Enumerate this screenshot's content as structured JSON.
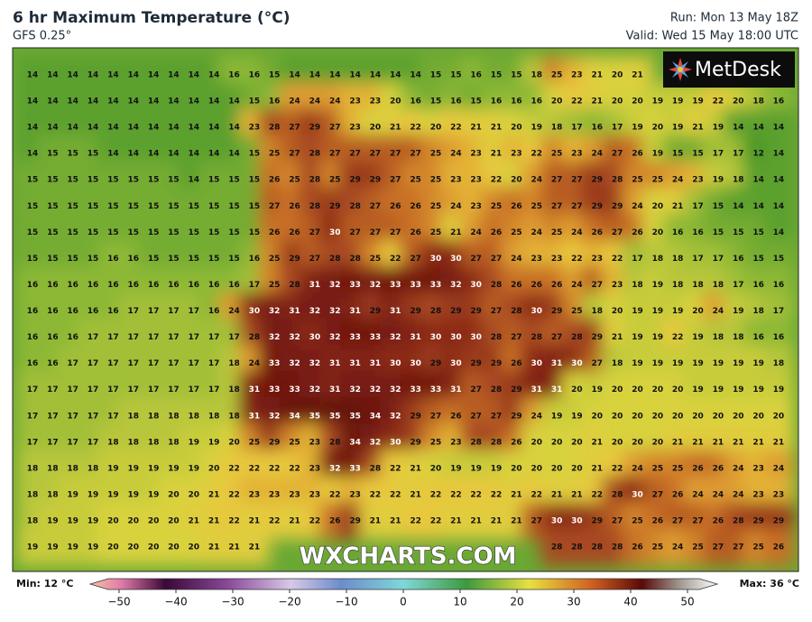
{
  "header": {
    "title": "6 hr Maximum Temperature (°C)",
    "subtitle": "GFS 0.25°",
    "run": "Run: Mon 13 May 18Z",
    "valid": "Valid: Wed 15 May 18:00 UTC"
  },
  "logo": "MetDesk",
  "watermark": "WXCHARTS.COM",
  "grid": {
    "rows": [
      [
        14,
        14,
        14,
        14,
        14,
        14,
        14,
        14,
        14,
        14,
        16,
        16,
        15,
        14,
        14,
        14,
        14,
        14,
        14,
        14,
        15,
        15,
        16,
        15,
        15,
        18,
        25,
        23,
        21,
        20,
        21,
        null,
        null,
        null,
        null,
        null,
        null,
        null
      ],
      [
        14,
        14,
        14,
        14,
        14,
        14,
        14,
        14,
        14,
        14,
        14,
        15,
        16,
        24,
        24,
        24,
        23,
        23,
        20,
        16,
        15,
        16,
        15,
        16,
        16,
        16,
        20,
        22,
        21,
        20,
        20,
        19,
        19,
        19,
        22,
        20,
        18,
        16
      ],
      [
        14,
        14,
        14,
        14,
        14,
        14,
        14,
        14,
        14,
        14,
        14,
        23,
        28,
        27,
        29,
        27,
        23,
        20,
        21,
        22,
        20,
        22,
        21,
        21,
        20,
        19,
        18,
        17,
        16,
        17,
        19,
        20,
        19,
        21,
        19,
        14,
        14,
        14
      ],
      [
        14,
        15,
        15,
        15,
        14,
        14,
        14,
        14,
        14,
        14,
        14,
        15,
        25,
        27,
        28,
        27,
        27,
        27,
        27,
        27,
        25,
        24,
        23,
        21,
        23,
        22,
        25,
        23,
        24,
        27,
        26,
        19,
        15,
        15,
        17,
        17,
        12,
        14
      ],
      [
        15,
        15,
        15,
        15,
        15,
        15,
        15,
        15,
        14,
        15,
        15,
        15,
        26,
        25,
        28,
        25,
        29,
        29,
        27,
        25,
        25,
        23,
        23,
        22,
        20,
        24,
        27,
        27,
        29,
        28,
        25,
        25,
        24,
        23,
        19,
        18,
        14,
        14
      ],
      [
        15,
        15,
        15,
        15,
        15,
        15,
        15,
        15,
        15,
        15,
        15,
        15,
        27,
        26,
        28,
        29,
        28,
        27,
        26,
        26,
        25,
        24,
        23,
        25,
        26,
        25,
        27,
        27,
        29,
        29,
        24,
        20,
        21,
        17,
        15,
        14,
        14,
        14
      ],
      [
        15,
        15,
        15,
        15,
        15,
        15,
        15,
        15,
        15,
        15,
        15,
        15,
        26,
        26,
        27,
        30,
        27,
        27,
        27,
        26,
        25,
        21,
        24,
        26,
        25,
        24,
        25,
        24,
        26,
        27,
        26,
        20,
        16,
        16,
        15,
        15,
        15,
        14
      ],
      [
        15,
        15,
        15,
        15,
        16,
        16,
        15,
        15,
        15,
        15,
        15,
        16,
        25,
        29,
        27,
        28,
        28,
        25,
        22,
        27,
        30,
        30,
        27,
        27,
        24,
        23,
        23,
        22,
        23,
        22,
        17,
        18,
        18,
        17,
        17,
        16,
        15,
        15
      ],
      [
        16,
        16,
        16,
        16,
        16,
        16,
        16,
        16,
        16,
        16,
        16,
        17,
        25,
        28,
        31,
        32,
        33,
        32,
        33,
        33,
        33,
        32,
        30,
        28,
        26,
        26,
        26,
        24,
        27,
        23,
        18,
        19,
        18,
        18,
        18,
        17,
        16,
        16
      ],
      [
        16,
        16,
        16,
        16,
        16,
        17,
        17,
        17,
        17,
        16,
        24,
        30,
        32,
        31,
        32,
        32,
        31,
        29,
        31,
        29,
        28,
        29,
        29,
        27,
        28,
        30,
        29,
        25,
        18,
        20,
        19,
        19,
        19,
        20,
        24,
        19,
        18,
        17
      ],
      [
        16,
        16,
        16,
        17,
        17,
        17,
        17,
        17,
        17,
        17,
        17,
        28,
        32,
        32,
        30,
        32,
        33,
        33,
        32,
        31,
        30,
        30,
        30,
        28,
        27,
        28,
        27,
        28,
        29,
        21,
        19,
        19,
        22,
        19,
        18,
        18,
        16,
        16
      ],
      [
        16,
        16,
        17,
        17,
        17,
        17,
        17,
        17,
        17,
        17,
        18,
        24,
        33,
        32,
        32,
        31,
        31,
        31,
        30,
        30,
        29,
        30,
        29,
        29,
        26,
        30,
        31,
        30,
        27,
        18,
        19,
        19,
        19,
        19,
        19,
        19,
        19,
        18
      ],
      [
        17,
        17,
        17,
        17,
        17,
        17,
        17,
        17,
        17,
        17,
        18,
        31,
        33,
        33,
        32,
        31,
        32,
        32,
        32,
        33,
        33,
        31,
        27,
        28,
        29,
        31,
        31,
        20,
        19,
        20,
        20,
        20,
        20,
        19,
        19,
        19,
        19,
        19
      ],
      [
        17,
        17,
        17,
        17,
        17,
        18,
        18,
        18,
        18,
        18,
        18,
        31,
        32,
        34,
        35,
        35,
        35,
        34,
        32,
        29,
        27,
        26,
        27,
        27,
        29,
        24,
        19,
        19,
        20,
        20,
        20,
        20,
        20,
        20,
        20,
        20,
        20,
        20
      ],
      [
        17,
        17,
        17,
        17,
        18,
        18,
        18,
        18,
        19,
        19,
        20,
        25,
        29,
        25,
        23,
        28,
        34,
        32,
        30,
        29,
        25,
        23,
        28,
        28,
        26,
        20,
        20,
        20,
        21,
        20,
        20,
        20,
        21,
        21,
        21,
        21,
        21,
        21
      ],
      [
        18,
        18,
        18,
        18,
        19,
        19,
        19,
        19,
        19,
        20,
        22,
        22,
        22,
        22,
        23,
        32,
        33,
        28,
        22,
        21,
        20,
        19,
        19,
        19,
        20,
        20,
        20,
        20,
        21,
        22,
        24,
        25,
        25,
        26,
        26,
        24,
        23,
        24
      ],
      [
        18,
        18,
        19,
        19,
        19,
        19,
        19,
        20,
        20,
        21,
        22,
        23,
        23,
        23,
        23,
        22,
        23,
        22,
        22,
        21,
        22,
        22,
        22,
        22,
        21,
        22,
        21,
        21,
        22,
        28,
        30,
        27,
        26,
        24,
        24,
        24,
        23,
        23
      ],
      [
        18,
        19,
        19,
        19,
        20,
        20,
        20,
        20,
        21,
        21,
        22,
        21,
        22,
        21,
        22,
        26,
        29,
        21,
        21,
        22,
        22,
        21,
        21,
        21,
        21,
        27,
        30,
        30,
        29,
        27,
        25,
        26,
        27,
        27,
        26,
        28,
        29,
        29
      ],
      [
        19,
        19,
        19,
        19,
        20,
        20,
        20,
        20,
        20,
        21,
        21,
        21,
        null,
        null,
        null,
        null,
        null,
        null,
        null,
        null,
        null,
        null,
        null,
        null,
        null,
        null,
        28,
        28,
        28,
        28,
        26,
        25,
        24,
        25,
        27,
        27,
        25,
        26
      ]
    ]
  },
  "colorbar": {
    "min_label": "Min: 12 °C",
    "max_label": "Max: 36 °C",
    "ticks": [
      {
        "value": -50,
        "label": "−50"
      },
      {
        "value": -40,
        "label": "−40"
      },
      {
        "value": -30,
        "label": "−30"
      },
      {
        "value": -20,
        "label": "−20"
      },
      {
        "value": -10,
        "label": "−10"
      },
      0,
      10,
      20,
      30,
      40,
      50
    ]
  }
}
